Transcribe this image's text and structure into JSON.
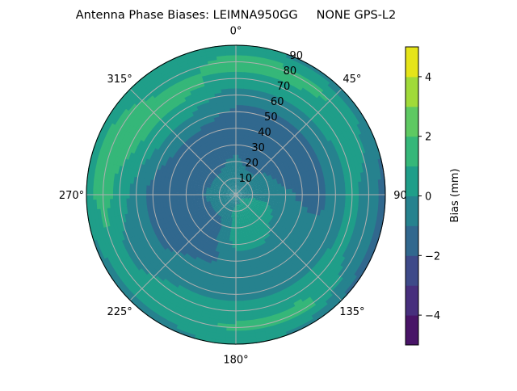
{
  "chart_data": {
    "type": "heatmap",
    "subtype": "polar-contour",
    "title": "Antenna Phase Biases: LEIMNA950GG     NONE GPS-L2",
    "theta_direction": "clockwise",
    "theta_zero": "top",
    "theta_tick_labels": [
      "0°",
      "45°",
      "90",
      "135°",
      "180°",
      "225°",
      "270°",
      "315°"
    ],
    "theta_ticks": [
      0,
      45,
      90,
      135,
      180,
      225,
      270,
      315
    ],
    "radial_tick_labels": [
      "10",
      "20",
      "30",
      "40",
      "50",
      "60",
      "70",
      "80",
      "90"
    ],
    "radial_ticks": [
      10,
      20,
      30,
      40,
      50,
      60,
      70,
      80,
      90
    ],
    "rlim": [
      0,
      90
    ],
    "grid": true,
    "colorbar": {
      "label": "Bias (mm)",
      "levels": [
        -5,
        -4,
        -3,
        -2,
        -1,
        0,
        1,
        2,
        3,
        4,
        5
      ],
      "colors": [
        "#481467",
        "#472f7d",
        "#3e4a89",
        "#31688e",
        "#26828e",
        "#1f9e89",
        "#35b779",
        "#5ec962",
        "#a0da39",
        "#e5e419"
      ],
      "tick_values": [
        -4,
        -2,
        0,
        2,
        4
      ],
      "tick_labels": [
        "−4",
        "−2",
        "0",
        "2",
        "4"
      ],
      "placement": "right"
    },
    "azimuth": [
      0,
      30,
      60,
      90,
      120,
      150,
      180,
      210,
      240,
      270,
      300,
      330
    ],
    "zenith": [
      0,
      10,
      20,
      30,
      40,
      50,
      60,
      70,
      80,
      90
    ],
    "bias": [
      [
        -0.5,
        -0.5,
        -0.7,
        -1.5,
        -1.5,
        -1.2,
        -0.5,
        0.5,
        1.5,
        0.5
      ],
      [
        -0.5,
        -0.5,
        -1.5,
        -1.5,
        -1.5,
        -1.5,
        -0.5,
        0.5,
        1.5,
        -0.5
      ],
      [
        -0.5,
        -0.5,
        -0.8,
        -1.5,
        -1.5,
        -1.5,
        -0.5,
        0.5,
        0.5,
        -0.5
      ],
      [
        -0.5,
        -0.3,
        -0.5,
        -0.8,
        -1.2,
        -1.5,
        -0.5,
        0.3,
        -0.5,
        -1.5
      ],
      [
        -0.5,
        0.5,
        0.5,
        -0.5,
        -0.5,
        -0.5,
        -0.5,
        0.5,
        -0.5,
        -1.5
      ],
      [
        -0.5,
        0.5,
        0.5,
        0.3,
        -0.5,
        -0.5,
        -0.3,
        0.5,
        1.5,
        -0.5
      ],
      [
        -0.5,
        0.3,
        0.5,
        0.3,
        -0.5,
        -0.5,
        -0.5,
        0.5,
        1.2,
        0.5
      ],
      [
        -0.5,
        -0.5,
        -1.2,
        -1.5,
        -1.5,
        -0.5,
        -0.5,
        0.5,
        0.5,
        -0.5
      ],
      [
        -0.5,
        -0.5,
        -1.5,
        -1.5,
        -1.5,
        -1.5,
        -0.5,
        -0.5,
        0.5,
        -0.5
      ],
      [
        -0.5,
        -0.5,
        -1.0,
        -1.5,
        -1.5,
        -1.5,
        -0.5,
        0.5,
        1.5,
        0.5
      ],
      [
        -0.5,
        -0.5,
        -1.5,
        -1.5,
        -1.5,
        -0.5,
        0.5,
        1.5,
        1.5,
        0.5
      ],
      [
        -0.5,
        -0.5,
        -1.2,
        -1.5,
        -1.5,
        -0.5,
        0.5,
        1.5,
        0.5,
        0.5
      ]
    ]
  }
}
